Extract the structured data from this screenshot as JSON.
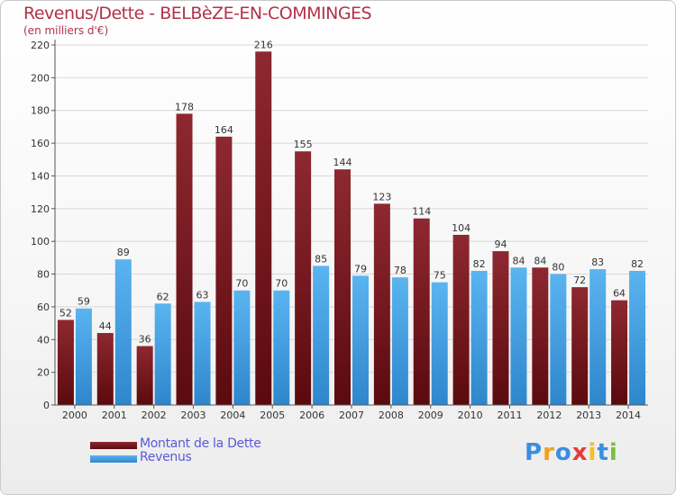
{
  "title": "Revenus/Dette - BELBèZE-EN-COMMINGES",
  "subtitle": "(en milliers d'€)",
  "colors": {
    "dette_top": "#8e2830",
    "dette_bottom": "#5a0a0e",
    "revenus_top": "#5ab4f0",
    "revenus_bottom": "#2e86cc",
    "title": "#b0324a",
    "legend_text": "#5b59d6"
  },
  "legend": {
    "dette_label": "Montant de la Dette",
    "revenus_label": "Revenus"
  },
  "logo": {
    "text": "Proxiti"
  },
  "chart_data": {
    "type": "bar",
    "title": "Revenus/Dette - BELBèZE-EN-COMMINGES",
    "subtitle": "(en milliers d'€)",
    "categories": [
      "2000",
      "2001",
      "2002",
      "2003",
      "2004",
      "2005",
      "2006",
      "2007",
      "2008",
      "2009",
      "2010",
      "2011",
      "2012",
      "2013",
      "2014"
    ],
    "series": [
      {
        "name": "Montant de la Dette",
        "values": [
          52,
          44,
          36,
          178,
          164,
          216,
          155,
          144,
          123,
          114,
          104,
          94,
          84,
          72,
          64
        ]
      },
      {
        "name": "Revenus",
        "values": [
          59,
          89,
          62,
          63,
          70,
          70,
          85,
          79,
          78,
          75,
          82,
          84,
          80,
          83,
          82
        ]
      }
    ],
    "ylim": [
      0,
      220
    ],
    "yticks": [
      0,
      20,
      40,
      60,
      80,
      100,
      120,
      140,
      160,
      180,
      200,
      220
    ],
    "grid": true,
    "legend_position": "bottom-left"
  }
}
